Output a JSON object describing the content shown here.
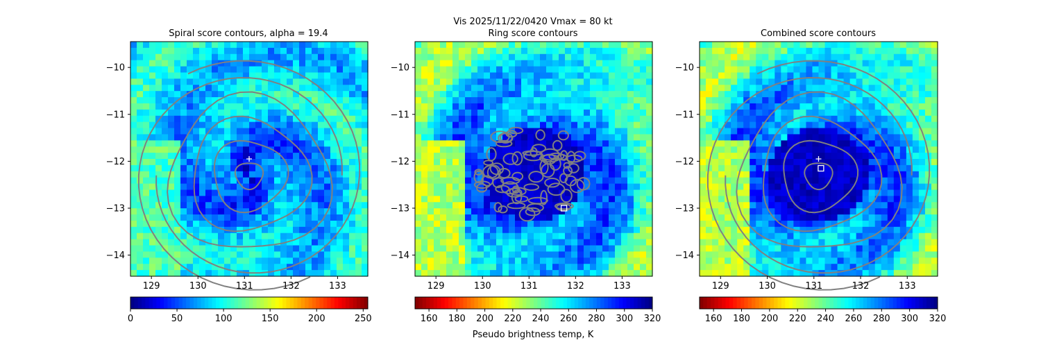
{
  "suptitle_line1": "Vis  2025/11/22/0420    Vmax = 80 kt",
  "colormap_name": "jet",
  "contour_color": "#808080",
  "marker_color": "#ffffff",
  "chart_data": [
    {
      "type": "heatmap",
      "title": "Spiral score contours, alpha = 19.4",
      "xlim": [
        128.55,
        133.65
      ],
      "ylim": [
        -14.45,
        -9.45
      ],
      "xticks": [
        "129",
        "130",
        "131",
        "132",
        "133"
      ],
      "yticks": [
        "−10",
        "−11",
        "−12",
        "−13",
        "−14"
      ],
      "colorbar": {
        "label": "",
        "ticks": [
          "0",
          "50",
          "100",
          "150",
          "200",
          "250"
        ],
        "range": [
          0,
          255
        ],
        "reversed": false
      },
      "image_style": "cold",
      "center_marker": {
        "x": 131.1,
        "y": -11.95,
        "symbol": "+"
      },
      "square_marker": null,
      "contour_style": "spiral"
    },
    {
      "type": "heatmap",
      "title": "Ring score contours",
      "xlim": [
        128.55,
        133.65
      ],
      "ylim": [
        -14.45,
        -9.45
      ],
      "xticks": [
        "129",
        "130",
        "131",
        "132",
        "133"
      ],
      "yticks": [
        "−10",
        "−11",
        "−12",
        "−13",
        "−14"
      ],
      "colorbar": {
        "label": "Pseudo brightness temp, K",
        "ticks": [
          "160",
          "180",
          "200",
          "220",
          "240",
          "260",
          "280",
          "300",
          "320"
        ],
        "range": [
          150,
          320
        ],
        "reversed": true
      },
      "image_style": "warm",
      "center_marker": null,
      "square_marker": {
        "x": 131.75,
        "y": -13.0,
        "symbol": "square"
      },
      "contour_style": "ring"
    },
    {
      "type": "heatmap",
      "title": "Combined score contours",
      "xlim": [
        128.55,
        133.65
      ],
      "ylim": [
        -14.45,
        -9.45
      ],
      "xticks": [
        "129",
        "130",
        "131",
        "132",
        "133"
      ],
      "yticks": [
        "−10",
        "−11",
        "−12",
        "−13",
        "−14"
      ],
      "colorbar": {
        "label": "",
        "ticks": [
          "160",
          "180",
          "200",
          "220",
          "240",
          "260",
          "280",
          "300",
          "320"
        ],
        "range": [
          150,
          320
        ],
        "reversed": true
      },
      "image_style": "warm",
      "center_marker": {
        "x": 131.1,
        "y": -11.95,
        "symbol": "+"
      },
      "square_marker": {
        "x": 131.15,
        "y": -12.15,
        "symbol": "square"
      },
      "contour_style": "spiral"
    }
  ]
}
